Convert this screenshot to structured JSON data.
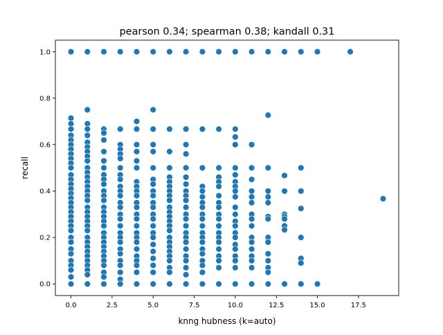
{
  "chart_data": {
    "type": "scatter",
    "title": "pearson 0.34; spearman 0.38; kandall 0.31",
    "xlabel": "knng hubness (k=auto)",
    "ylabel": "recall",
    "xlim": [
      -0.95,
      19.95
    ],
    "ylim": [
      -0.05,
      1.05
    ],
    "xticks": [
      0.0,
      2.5,
      5.0,
      7.5,
      10.0,
      12.5,
      15.0,
      17.5
    ],
    "xtick_labels": [
      "0.0",
      "2.5",
      "5.0",
      "7.5",
      "10.0",
      "12.5",
      "15.0",
      "17.5"
    ],
    "yticks": [
      0.0,
      0.2,
      0.4,
      0.6,
      0.8,
      1.0
    ],
    "ytick_labels": [
      "0.0",
      "0.2",
      "0.4",
      "0.6",
      "0.8",
      "1.0"
    ],
    "grid": false,
    "marker_color": "#1f77b4",
    "marker_edge": "#ffffff",
    "points": [
      [
        0,
        1.0
      ],
      [
        1,
        1.0
      ],
      [
        2,
        1.0
      ],
      [
        3,
        1.0
      ],
      [
        4,
        1.0
      ],
      [
        5,
        1.0
      ],
      [
        6,
        1.0
      ],
      [
        7,
        1.0
      ],
      [
        8,
        1.0
      ],
      [
        9,
        1.0
      ],
      [
        10,
        1.0
      ],
      [
        11,
        1.0
      ],
      [
        12,
        1.0
      ],
      [
        13,
        1.0
      ],
      [
        14,
        1.0
      ],
      [
        15,
        1.0
      ],
      [
        17,
        1.0
      ],
      [
        0,
        0.714
      ],
      [
        0,
        0.69
      ],
      [
        0,
        0.667
      ],
      [
        0,
        0.64
      ],
      [
        0,
        0.62
      ],
      [
        0,
        0.6
      ],
      [
        0,
        0.58
      ],
      [
        0,
        0.56
      ],
      [
        0,
        0.54
      ],
      [
        0,
        0.52
      ],
      [
        0,
        0.5
      ],
      [
        0,
        0.47
      ],
      [
        0,
        0.45
      ],
      [
        0,
        0.43
      ],
      [
        0,
        0.41
      ],
      [
        0,
        0.39
      ],
      [
        0,
        0.37
      ],
      [
        0,
        0.35
      ],
      [
        0,
        0.33
      ],
      [
        0,
        0.31
      ],
      [
        0,
        0.29
      ],
      [
        0,
        0.27
      ],
      [
        0,
        0.25
      ],
      [
        0,
        0.23
      ],
      [
        0,
        0.2
      ],
      [
        0,
        0.18
      ],
      [
        0,
        0.15
      ],
      [
        0,
        0.13
      ],
      [
        0,
        0.1
      ],
      [
        0,
        0.08
      ],
      [
        0,
        0.06
      ],
      [
        0,
        0.03
      ],
      [
        0,
        0.0
      ],
      [
        1,
        0.75
      ],
      [
        1,
        0.69
      ],
      [
        1,
        0.667
      ],
      [
        1,
        0.64
      ],
      [
        1,
        0.61
      ],
      [
        1,
        0.59
      ],
      [
        1,
        0.57
      ],
      [
        1,
        0.55
      ],
      [
        1,
        0.53
      ],
      [
        1,
        0.5
      ],
      [
        1,
        0.48
      ],
      [
        1,
        0.46
      ],
      [
        1,
        0.44
      ],
      [
        1,
        0.42
      ],
      [
        1,
        0.4
      ],
      [
        1,
        0.38
      ],
      [
        1,
        0.36
      ],
      [
        1,
        0.33
      ],
      [
        1,
        0.31
      ],
      [
        1,
        0.29
      ],
      [
        1,
        0.27
      ],
      [
        1,
        0.25
      ],
      [
        1,
        0.23
      ],
      [
        1,
        0.2
      ],
      [
        1,
        0.18
      ],
      [
        1,
        0.16
      ],
      [
        1,
        0.14
      ],
      [
        1,
        0.12
      ],
      [
        1,
        0.1
      ],
      [
        1,
        0.08
      ],
      [
        1,
        0.06
      ],
      [
        1,
        0.04
      ],
      [
        1,
        0.0
      ],
      [
        2,
        0.667
      ],
      [
        2,
        0.65
      ],
      [
        2,
        0.62
      ],
      [
        2,
        0.57
      ],
      [
        2,
        0.53
      ],
      [
        2,
        0.5
      ],
      [
        2,
        0.47
      ],
      [
        2,
        0.45
      ],
      [
        2,
        0.43
      ],
      [
        2,
        0.4
      ],
      [
        2,
        0.38
      ],
      [
        2,
        0.36
      ],
      [
        2,
        0.33
      ],
      [
        2,
        0.31
      ],
      [
        2,
        0.29
      ],
      [
        2,
        0.27
      ],
      [
        2,
        0.25
      ],
      [
        2,
        0.22
      ],
      [
        2,
        0.2
      ],
      [
        2,
        0.18
      ],
      [
        2,
        0.16
      ],
      [
        2,
        0.14
      ],
      [
        2,
        0.12
      ],
      [
        2,
        0.1
      ],
      [
        2,
        0.08
      ],
      [
        2,
        0.05
      ],
      [
        2,
        0.03
      ],
      [
        2,
        0.0
      ],
      [
        3,
        0.667
      ],
      [
        3,
        0.6
      ],
      [
        3,
        0.58
      ],
      [
        3,
        0.56
      ],
      [
        3,
        0.54
      ],
      [
        3,
        0.5
      ],
      [
        3,
        0.47
      ],
      [
        3,
        0.45
      ],
      [
        3,
        0.42
      ],
      [
        3,
        0.4
      ],
      [
        3,
        0.38
      ],
      [
        3,
        0.35
      ],
      [
        3,
        0.33
      ],
      [
        3,
        0.3
      ],
      [
        3,
        0.28
      ],
      [
        3,
        0.25
      ],
      [
        3,
        0.22
      ],
      [
        3,
        0.2
      ],
      [
        3,
        0.18
      ],
      [
        3,
        0.15
      ],
      [
        3,
        0.13
      ],
      [
        3,
        0.1
      ],
      [
        3,
        0.08
      ],
      [
        3,
        0.05
      ],
      [
        3,
        0.02
      ],
      [
        3,
        0.0
      ],
      [
        4,
        0.7
      ],
      [
        4,
        0.667
      ],
      [
        4,
        0.6
      ],
      [
        4,
        0.57
      ],
      [
        4,
        0.53
      ],
      [
        4,
        0.5
      ],
      [
        4,
        0.44
      ],
      [
        4,
        0.42
      ],
      [
        4,
        0.4
      ],
      [
        4,
        0.38
      ],
      [
        4,
        0.35
      ],
      [
        4,
        0.33
      ],
      [
        4,
        0.3
      ],
      [
        4,
        0.28
      ],
      [
        4,
        0.25
      ],
      [
        4,
        0.22
      ],
      [
        4,
        0.2
      ],
      [
        4,
        0.18
      ],
      [
        4,
        0.15
      ],
      [
        4,
        0.12
      ],
      [
        4,
        0.1
      ],
      [
        4,
        0.08
      ],
      [
        4,
        0.05
      ],
      [
        4,
        0.0
      ],
      [
        5,
        0.75
      ],
      [
        5,
        0.667
      ],
      [
        5,
        0.6
      ],
      [
        5,
        0.57
      ],
      [
        5,
        0.5
      ],
      [
        5,
        0.45
      ],
      [
        5,
        0.43
      ],
      [
        5,
        0.4
      ],
      [
        5,
        0.38
      ],
      [
        5,
        0.35
      ],
      [
        5,
        0.33
      ],
      [
        5,
        0.3
      ],
      [
        5,
        0.28
      ],
      [
        5,
        0.25
      ],
      [
        5,
        0.22
      ],
      [
        5,
        0.2
      ],
      [
        5,
        0.17
      ],
      [
        5,
        0.14
      ],
      [
        5,
        0.11
      ],
      [
        5,
        0.08
      ],
      [
        5,
        0.05
      ],
      [
        5,
        0.0
      ],
      [
        6,
        0.667
      ],
      [
        6,
        0.57
      ],
      [
        6,
        0.5
      ],
      [
        6,
        0.46
      ],
      [
        6,
        0.44
      ],
      [
        6,
        0.42
      ],
      [
        6,
        0.4
      ],
      [
        6,
        0.38
      ],
      [
        6,
        0.36
      ],
      [
        6,
        0.33
      ],
      [
        6,
        0.31
      ],
      [
        6,
        0.29
      ],
      [
        6,
        0.27
      ],
      [
        6,
        0.25
      ],
      [
        6,
        0.23
      ],
      [
        6,
        0.2
      ],
      [
        6,
        0.18
      ],
      [
        6,
        0.16
      ],
      [
        6,
        0.14
      ],
      [
        6,
        0.12
      ],
      [
        6,
        0.1
      ],
      [
        6,
        0.07
      ],
      [
        6,
        0.05
      ],
      [
        6,
        0.0
      ],
      [
        7,
        0.667
      ],
      [
        7,
        0.6
      ],
      [
        7,
        0.56
      ],
      [
        7,
        0.5
      ],
      [
        7,
        0.46
      ],
      [
        7,
        0.43
      ],
      [
        7,
        0.4
      ],
      [
        7,
        0.38
      ],
      [
        7,
        0.36
      ],
      [
        7,
        0.33
      ],
      [
        7,
        0.3
      ],
      [
        7,
        0.28
      ],
      [
        7,
        0.25
      ],
      [
        7,
        0.22
      ],
      [
        7,
        0.2
      ],
      [
        7,
        0.18
      ],
      [
        7,
        0.15
      ],
      [
        7,
        0.12
      ],
      [
        7,
        0.1
      ],
      [
        7,
        0.07
      ],
      [
        7,
        0.04
      ],
      [
        7,
        0.0
      ],
      [
        8,
        0.667
      ],
      [
        8,
        0.5
      ],
      [
        8,
        0.42
      ],
      [
        8,
        0.4
      ],
      [
        8,
        0.375
      ],
      [
        8,
        0.35
      ],
      [
        8,
        0.33
      ],
      [
        8,
        0.3
      ],
      [
        8,
        0.28
      ],
      [
        8,
        0.25
      ],
      [
        8,
        0.22
      ],
      [
        8,
        0.2
      ],
      [
        8,
        0.18
      ],
      [
        8,
        0.15
      ],
      [
        8,
        0.13
      ],
      [
        8,
        0.1
      ],
      [
        8,
        0.08
      ],
      [
        8,
        0.05
      ],
      [
        8,
        0.0
      ],
      [
        9,
        0.667
      ],
      [
        9,
        0.5
      ],
      [
        9,
        0.46
      ],
      [
        9,
        0.44
      ],
      [
        9,
        0.42
      ],
      [
        9,
        0.38
      ],
      [
        9,
        0.35
      ],
      [
        9,
        0.33
      ],
      [
        9,
        0.3
      ],
      [
        9,
        0.28
      ],
      [
        9,
        0.25
      ],
      [
        9,
        0.22
      ],
      [
        9,
        0.2
      ],
      [
        9,
        0.18
      ],
      [
        9,
        0.15
      ],
      [
        9,
        0.12
      ],
      [
        9,
        0.1
      ],
      [
        9,
        0.07
      ],
      [
        9,
        0.0
      ],
      [
        10,
        0.667
      ],
      [
        10,
        0.633
      ],
      [
        10,
        0.6
      ],
      [
        10,
        0.5
      ],
      [
        10,
        0.47
      ],
      [
        10,
        0.44
      ],
      [
        10,
        0.42
      ],
      [
        10,
        0.4
      ],
      [
        10,
        0.375
      ],
      [
        10,
        0.33
      ],
      [
        10,
        0.3
      ],
      [
        10,
        0.27
      ],
      [
        10,
        0.25
      ],
      [
        10,
        0.22
      ],
      [
        10,
        0.2
      ],
      [
        10,
        0.17
      ],
      [
        10,
        0.15
      ],
      [
        10,
        0.12
      ],
      [
        10,
        0.1
      ],
      [
        10,
        0.07
      ],
      [
        10,
        0.0
      ],
      [
        11,
        0.6
      ],
      [
        11,
        0.5
      ],
      [
        11,
        0.45
      ],
      [
        11,
        0.4
      ],
      [
        11,
        0.375
      ],
      [
        11,
        0.35
      ],
      [
        11,
        0.3
      ],
      [
        11,
        0.28
      ],
      [
        11,
        0.25
      ],
      [
        11,
        0.2
      ],
      [
        11,
        0.18
      ],
      [
        11,
        0.15
      ],
      [
        11,
        0.12
      ],
      [
        11,
        0.1
      ],
      [
        11,
        0.07
      ],
      [
        11,
        0.0
      ],
      [
        12,
        0.727
      ],
      [
        12,
        0.5
      ],
      [
        12,
        0.4
      ],
      [
        12,
        0.375
      ],
      [
        12,
        0.35
      ],
      [
        12,
        0.29
      ],
      [
        12,
        0.28
      ],
      [
        12,
        0.2
      ],
      [
        12,
        0.18
      ],
      [
        12,
        0.13
      ],
      [
        12,
        0.1
      ],
      [
        12,
        0.07
      ],
      [
        12,
        0.05
      ],
      [
        12,
        0.0
      ],
      [
        13,
        0.467
      ],
      [
        13,
        0.4
      ],
      [
        13,
        0.3
      ],
      [
        13,
        0.29
      ],
      [
        13,
        0.28
      ],
      [
        13,
        0.25
      ],
      [
        13,
        0.233
      ],
      [
        13,
        0.0
      ],
      [
        14,
        0.5
      ],
      [
        14,
        0.4
      ],
      [
        14,
        0.325
      ],
      [
        14,
        0.2
      ],
      [
        14,
        0.11
      ],
      [
        14,
        0.09
      ],
      [
        14,
        0.0
      ],
      [
        15,
        0.0
      ],
      [
        19,
        0.367
      ]
    ]
  }
}
